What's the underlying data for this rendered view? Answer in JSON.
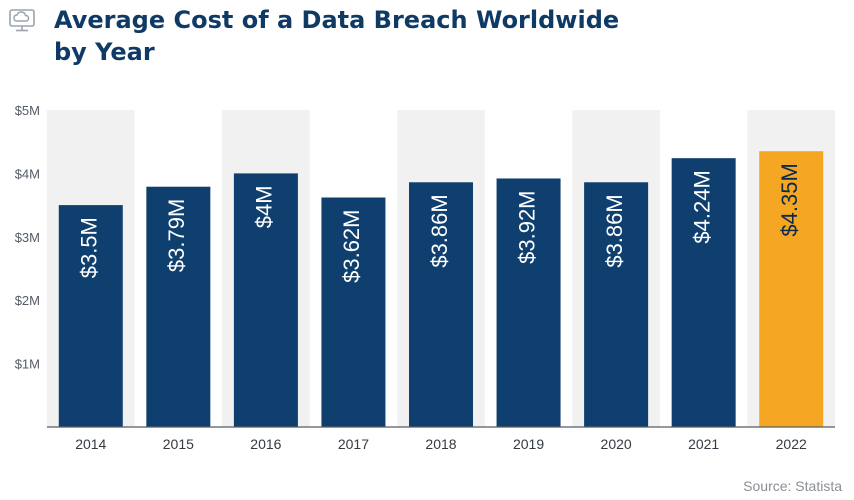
{
  "header": {
    "title_line1": "Average Cost of a Data Breach Worldwide",
    "title_line2": "by Year",
    "logo_icon": "cloud-monitor-icon"
  },
  "footer": {
    "source": "Source: Statista"
  },
  "colors": {
    "bar": "#0f3f6e",
    "highlight": "#f5a623",
    "band": "#f1f1f1",
    "title": "#0f3a66"
  },
  "chart_data": {
    "type": "bar",
    "title": "Average Cost of a Data Breach Worldwide by Year",
    "categories": [
      "2014",
      "2015",
      "2016",
      "2017",
      "2018",
      "2019",
      "2020",
      "2021",
      "2022"
    ],
    "values": [
      3.5,
      3.79,
      4.0,
      3.62,
      3.86,
      3.92,
      3.86,
      4.24,
      4.35
    ],
    "value_labels": [
      "$3.5M",
      "$3.79M",
      "$4M",
      "$3.62M",
      "$3.86M",
      "$3.92M",
      "$3.86M",
      "$4.24M",
      "$4.35M"
    ],
    "unit": "$M",
    "ylim": [
      0,
      5
    ],
    "yticks": [
      1,
      2,
      3,
      4,
      5
    ],
    "ytick_labels": [
      "$1M",
      "$2M",
      "$3M",
      "$4M",
      "$5M"
    ],
    "highlight_category": "2022",
    "grid": false,
    "alternating_column_bands": true
  }
}
